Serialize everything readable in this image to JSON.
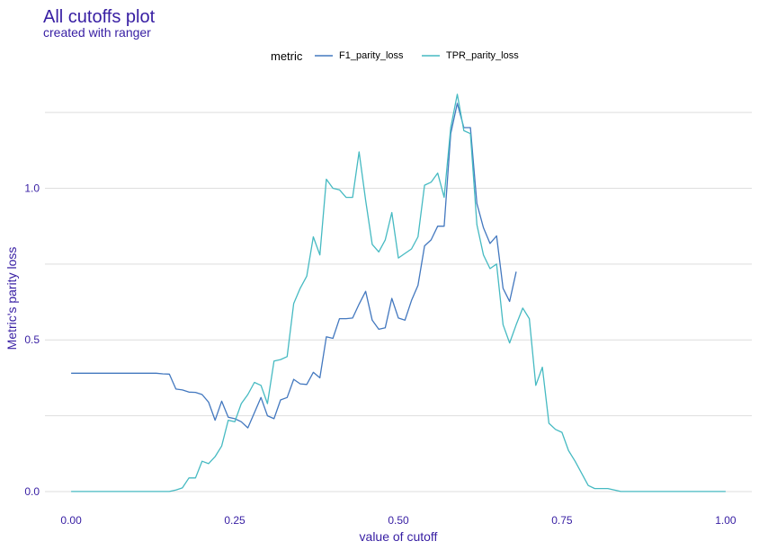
{
  "chart_data": {
    "type": "line",
    "title": "All cutoffs plot",
    "subtitle": "created with ranger",
    "xlabel": "value of cutoff",
    "ylabel": "Metric's parity loss",
    "legend_title": "metric",
    "legend_position": "top",
    "grid": true,
    "xlim": [
      -0.04,
      1.04
    ],
    "ylim": [
      -0.015,
      1.36
    ],
    "x_ticks": [
      0.0,
      0.25,
      0.5,
      0.75,
      1.0
    ],
    "x_tick_labels": [
      "0.00",
      "0.25",
      "0.50",
      "0.75",
      "1.00"
    ],
    "y_ticks": [
      0.0,
      0.5,
      1.0
    ],
    "y_tick_labels": [
      "0.0",
      "0.5",
      "1.0"
    ],
    "y_minor_ticks": [
      0.25,
      0.75,
      1.25
    ],
    "series": [
      {
        "name": "F1_parity_loss",
        "color": "#4378bf",
        "x": [
          0.0,
          0.01,
          0.02,
          0.03,
          0.04,
          0.05,
          0.06,
          0.07,
          0.08,
          0.09,
          0.1,
          0.11,
          0.12,
          0.13,
          0.14,
          0.15,
          0.16,
          0.17,
          0.18,
          0.19,
          0.2,
          0.21,
          0.22,
          0.23,
          0.24,
          0.25,
          0.26,
          0.27,
          0.28,
          0.29,
          0.3,
          0.31,
          0.32,
          0.33,
          0.34,
          0.35,
          0.36,
          0.37,
          0.38,
          0.39,
          0.4,
          0.41,
          0.42,
          0.43,
          0.44,
          0.45,
          0.46,
          0.47,
          0.48,
          0.49,
          0.5,
          0.51,
          0.52,
          0.53,
          0.54,
          0.55,
          0.56,
          0.57,
          0.58,
          0.59,
          0.6,
          0.61,
          0.62,
          0.63,
          0.64,
          0.65,
          0.66,
          0.67,
          0.68
        ],
        "y": [
          0.39,
          0.39,
          0.39,
          0.39,
          0.39,
          0.39,
          0.39,
          0.39,
          0.39,
          0.39,
          0.39,
          0.39,
          0.39,
          0.39,
          0.388,
          0.387,
          0.338,
          0.335,
          0.328,
          0.327,
          0.32,
          0.295,
          0.235,
          0.298,
          0.245,
          0.24,
          0.23,
          0.21,
          0.26,
          0.31,
          0.25,
          0.24,
          0.302,
          0.31,
          0.37,
          0.355,
          0.353,
          0.393,
          0.375,
          0.51,
          0.505,
          0.57,
          0.57,
          0.572,
          0.618,
          0.66,
          0.565,
          0.535,
          0.54,
          0.637,
          0.572,
          0.565,
          0.63,
          0.68,
          0.81,
          0.83,
          0.875,
          0.875,
          1.18,
          1.28,
          1.2,
          1.2,
          0.95,
          0.87,
          0.818,
          0.843,
          0.67,
          0.627,
          0.725
        ]
      },
      {
        "name": "TPR_parity_loss",
        "color": "#46bac2",
        "x": [
          0.0,
          0.01,
          0.02,
          0.03,
          0.04,
          0.05,
          0.06,
          0.07,
          0.08,
          0.09,
          0.1,
          0.11,
          0.12,
          0.13,
          0.14,
          0.15,
          0.16,
          0.17,
          0.18,
          0.19,
          0.2,
          0.21,
          0.22,
          0.23,
          0.24,
          0.25,
          0.26,
          0.27,
          0.28,
          0.29,
          0.3,
          0.31,
          0.32,
          0.33,
          0.34,
          0.35,
          0.36,
          0.37,
          0.38,
          0.39,
          0.4,
          0.41,
          0.42,
          0.43,
          0.44,
          0.45,
          0.46,
          0.47,
          0.48,
          0.49,
          0.5,
          0.51,
          0.52,
          0.53,
          0.54,
          0.55,
          0.56,
          0.57,
          0.58,
          0.59,
          0.6,
          0.61,
          0.62,
          0.63,
          0.64,
          0.65,
          0.66,
          0.67,
          0.68,
          0.69,
          0.7,
          0.71,
          0.72,
          0.73,
          0.74,
          0.75,
          0.76,
          0.77,
          0.78,
          0.79,
          0.8,
          0.81,
          0.82,
          0.83,
          0.84,
          0.85,
          0.86,
          0.87,
          0.88,
          0.89,
          0.9,
          0.91,
          0.92,
          0.93,
          0.94,
          0.95,
          0.96,
          0.97,
          0.98,
          0.99,
          1.0
        ],
        "y": [
          0.0,
          0.0,
          0.0,
          0.0,
          0.0,
          0.0,
          0.0,
          0.0,
          0.0,
          0.0,
          0.0,
          0.0,
          0.0,
          0.0,
          0.0,
          0.0,
          0.005,
          0.012,
          0.045,
          0.045,
          0.1,
          0.092,
          0.115,
          0.15,
          0.235,
          0.23,
          0.29,
          0.32,
          0.36,
          0.35,
          0.29,
          0.43,
          0.435,
          0.445,
          0.62,
          0.67,
          0.71,
          0.84,
          0.78,
          1.03,
          1.0,
          0.995,
          0.97,
          0.97,
          1.12,
          0.96,
          0.815,
          0.79,
          0.83,
          0.92,
          0.77,
          0.785,
          0.8,
          0.84,
          1.01,
          1.02,
          1.05,
          0.97,
          1.2,
          1.31,
          1.19,
          1.18,
          0.88,
          0.78,
          0.735,
          0.75,
          0.55,
          0.49,
          0.55,
          0.605,
          0.57,
          0.35,
          0.41,
          0.225,
          0.205,
          0.195,
          0.135,
          0.1,
          0.06,
          0.02,
          0.01,
          0.01,
          0.01,
          0.005,
          0.0,
          0.0,
          0.0,
          0.0,
          0.0,
          0.0,
          0.0,
          0.0,
          0.0,
          0.0,
          0.0,
          0.0,
          0.0,
          0.0,
          0.0,
          0.0,
          0.0
        ]
      }
    ]
  }
}
